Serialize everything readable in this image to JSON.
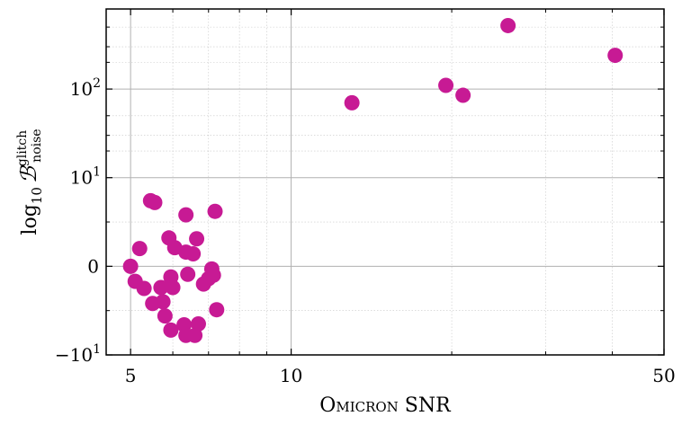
{
  "chart_data": {
    "type": "scatter",
    "xlabel": "Omicron SNR",
    "ylabel": "log10 B^glitch_noise",
    "x_scale": "log",
    "y_scale": "symlog",
    "y_linthresh": 10,
    "xlim": [
      4.5,
      50
    ],
    "ylim": [
      -10,
      800
    ],
    "x_ticks": [
      {
        "value": 5,
        "label": "5"
      },
      {
        "value": 10,
        "label": "10"
      },
      {
        "value": 50,
        "label": "50"
      }
    ],
    "y_ticks": [
      {
        "value": -10,
        "label": "−10",
        "sup": "1"
      },
      {
        "value": 0,
        "label": "0",
        "sup": ""
      },
      {
        "value": 10,
        "label": "10",
        "sup": "1"
      },
      {
        "value": 100,
        "label": "10",
        "sup": "2"
      }
    ],
    "grid": true,
    "marker_color": "#c71a94",
    "points": [
      {
        "x": 5.0,
        "y": 0
      },
      {
        "x": 5.1,
        "y": -1.7
      },
      {
        "x": 5.2,
        "y": 2.0
      },
      {
        "x": 5.3,
        "y": -2.5
      },
      {
        "x": 5.45,
        "y": 7.4
      },
      {
        "x": 5.5,
        "y": -4.2
      },
      {
        "x": 5.55,
        "y": 7.2
      },
      {
        "x": 5.7,
        "y": -2.4
      },
      {
        "x": 5.75,
        "y": -4.0
      },
      {
        "x": 5.8,
        "y": -5.6
      },
      {
        "x": 5.9,
        "y": 3.2
      },
      {
        "x": 5.95,
        "y": -1.2
      },
      {
        "x": 6.0,
        "y": -2.4
      },
      {
        "x": 6.05,
        "y": 2.1
      },
      {
        "x": 5.95,
        "y": -7.2
      },
      {
        "x": 6.3,
        "y": -6.6
      },
      {
        "x": 6.35,
        "y": 1.6
      },
      {
        "x": 6.35,
        "y": 5.8
      },
      {
        "x": 6.4,
        "y": -0.9
      },
      {
        "x": 6.35,
        "y": -7.8
      },
      {
        "x": 6.55,
        "y": 1.4
      },
      {
        "x": 6.6,
        "y": -7.8
      },
      {
        "x": 6.65,
        "y": 3.1
      },
      {
        "x": 6.7,
        "y": -6.5
      },
      {
        "x": 6.85,
        "y": -2.0
      },
      {
        "x": 7.0,
        "y": -1.4
      },
      {
        "x": 7.1,
        "y": -0.3
      },
      {
        "x": 7.15,
        "y": -1.0
      },
      {
        "x": 7.2,
        "y": 6.2
      },
      {
        "x": 7.25,
        "y": -4.9
      },
      {
        "x": 13.0,
        "y": 70
      },
      {
        "x": 19.5,
        "y": 110
      },
      {
        "x": 21.0,
        "y": 85
      },
      {
        "x": 25.5,
        "y": 520
      },
      {
        "x": 40.5,
        "y": 240
      }
    ]
  }
}
